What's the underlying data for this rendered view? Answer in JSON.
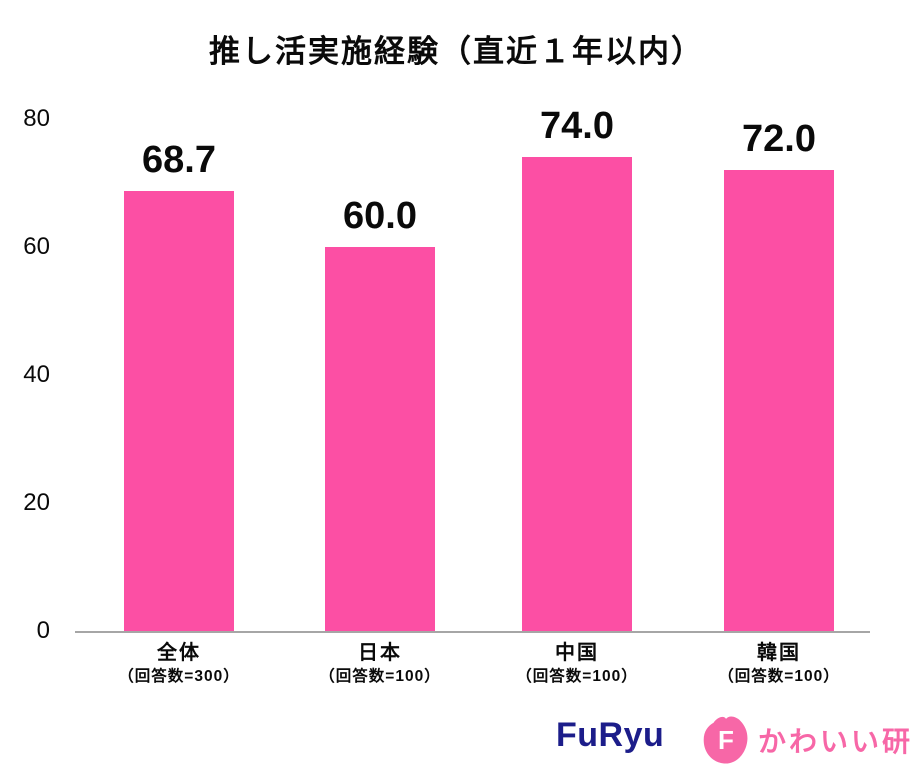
{
  "chart_data": {
    "type": "bar",
    "title": "推し活実施経験（直近１年以内）",
    "categories": [
      "全体",
      "日本",
      "中国",
      "韓国"
    ],
    "category_sublabels": [
      "（回答数=300）",
      "（回答数=100）",
      "（回答数=100）",
      "（回答数=100）"
    ],
    "values": [
      68.7,
      60.0,
      74.0,
      72.0
    ],
    "value_labels": [
      "68.7",
      "60.0",
      "74.0",
      "72.0"
    ],
    "xlabel": "",
    "ylabel": "",
    "ylim": [
      0,
      80
    ],
    "yticks": [
      0,
      20,
      40,
      60,
      80
    ],
    "grid": false,
    "legend": false,
    "bar_color": "#fc4fa4"
  },
  "footer": {
    "furyu_text": "FuRyu",
    "kawaii_badge_letter": "F",
    "kawaii_text": "かわいい研"
  },
  "colors": {
    "bar_pink": "#fc4fa4",
    "kawaii_pink": "#f767a7",
    "furyu_navy": "#1c1d8a",
    "axis_gray": "#a6a6a6",
    "text_black": "#0a0a0a"
  }
}
